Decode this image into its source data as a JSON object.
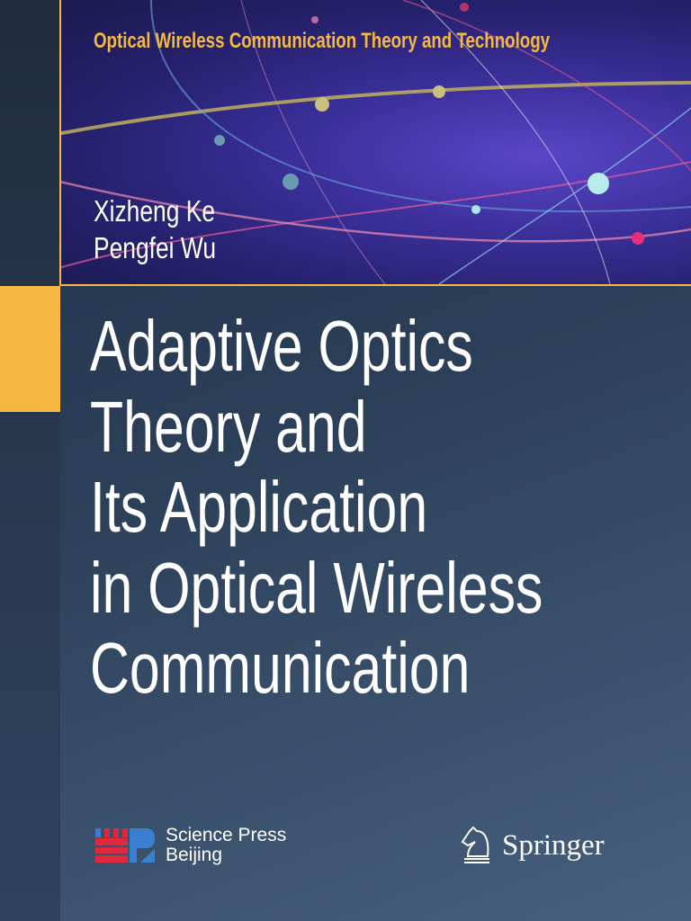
{
  "cover": {
    "series_title": "Optical Wireless Communication Theory and Technology",
    "authors": [
      "Xizheng Ke",
      "Pengfei Wu"
    ],
    "title_lines": [
      "Adaptive Optics",
      "Theory and",
      "Its Application",
      "in Optical Wireless",
      "Communication"
    ],
    "accent_color": "#f5b942"
  },
  "publishers": {
    "science_press": {
      "line1": "Science Press",
      "line2": "Beijing",
      "logo": "science-press-sp-logo"
    },
    "springer": {
      "name": "Springer",
      "logo": "springer-horse-logo"
    }
  }
}
